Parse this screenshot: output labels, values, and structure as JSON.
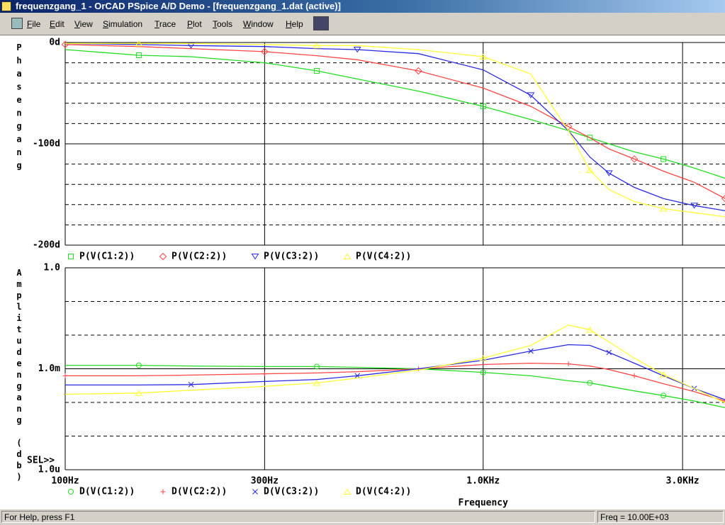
{
  "window": {
    "title": "frequenzgang_1 - OrCAD PSpice A/D Demo  - [frequenzgang_1.dat (active)]",
    "menu": [
      "File",
      "Edit",
      "View",
      "Simulation",
      "Trace",
      "Plot",
      "Tools",
      "Window",
      "Help"
    ],
    "status": {
      "help": "For Help, press F1",
      "freq": "Freq = 10.00E+03"
    },
    "sel_marker": "SEL>>"
  },
  "chart_data": [
    {
      "type": "line",
      "ylabel": "Phasengang",
      "xscale": "log",
      "grid": true,
      "xlim": [
        100,
        3790
      ],
      "xticks": [
        100,
        300,
        1000,
        3000
      ],
      "ylim": [
        -200,
        0
      ],
      "yticks": [
        {
          "value": -200,
          "label": "-200d"
        },
        {
          "value": -100,
          "label": "-100d"
        },
        {
          "value": 0,
          "label": "0d"
        }
      ],
      "x": [
        100,
        150,
        200,
        300,
        400,
        500,
        700,
        1000,
        1300,
        1600,
        1800,
        2000,
        2300,
        2700,
        3200,
        3790
      ],
      "series": [
        {
          "name": "P(V(C1:2))",
          "color": "#22dd22",
          "marker": "square",
          "values": [
            -7,
            -12.6,
            -14,
            -20,
            -28,
            -36,
            -48,
            -63,
            -76,
            -87,
            -94,
            -100,
            -108,
            -115,
            -124,
            -134
          ]
        },
        {
          "name": "P(V(C2:2))",
          "color": "#ff4444",
          "marker": "diamond",
          "values": [
            -2,
            -4,
            -6,
            -9,
            -13,
            -17,
            -28,
            -45,
            -63,
            -83,
            -94,
            -105,
            -115,
            -127,
            -138,
            -154
          ]
        },
        {
          "name": "P(V(C3:2))",
          "color": "#2a2ae0",
          "marker": "triangle-down",
          "values": [
            -1,
            -2,
            -3,
            -4,
            -6,
            -7,
            -11,
            -27,
            -52,
            -87,
            -113,
            -129,
            -143,
            -154,
            -161,
            -166
          ]
        },
        {
          "name": "P(V(C4:2))",
          "color": "#ffff33",
          "marker": "triangle-up",
          "values": [
            -1,
            -1,
            -1,
            -2,
            -3,
            -3,
            -7,
            -14,
            -31,
            -87,
            -126,
            -145,
            -157,
            -164,
            -168,
            -172
          ]
        }
      ]
    },
    {
      "type": "line",
      "ylabel": "Amplitudengang (db)",
      "xlabel": "Frequency",
      "xscale": "log",
      "yscale": "log",
      "grid": true,
      "xlim": [
        100,
        3790
      ],
      "xticks": [
        {
          "value": 100,
          "label": "100Hz"
        },
        {
          "value": 300,
          "label": "300Hz"
        },
        {
          "value": 1000,
          "label": "1.0KHz"
        },
        {
          "value": 3000,
          "label": "3.0KHz"
        }
      ],
      "ylim": [
        1e-06,
        1
      ],
      "yticks": [
        {
          "value": 1e-06,
          "label": "1.0u"
        },
        {
          "value": 0.001,
          "label": "1.0m"
        },
        {
          "value": 1,
          "label": "1.0"
        }
      ],
      "x": [
        100,
        150,
        200,
        300,
        400,
        500,
        700,
        1000,
        1300,
        1600,
        1800,
        2000,
        2300,
        2700,
        3200,
        3790
      ],
      "series": [
        {
          "name": "D(V(C1:2))",
          "color": "#22dd22",
          "marker": "circle",
          "values": [
            0.00127,
            0.00127,
            0.00121,
            0.00116,
            0.00116,
            0.0011,
            0.001,
            0.00078,
            0.00062,
            0.00044,
            0.00038,
            0.0003,
            0.00022,
            0.00016,
            0.00011,
            7e-05
          ]
        },
        {
          "name": "D(V(C2:2))",
          "color": "#ff4444",
          "marker": "plus",
          "values": [
            0.00062,
            0.00062,
            0.00065,
            0.00071,
            0.00075,
            0.00082,
            0.001,
            0.00134,
            0.00147,
            0.0014,
            0.00121,
            0.00095,
            0.00062,
            0.00036,
            0.00021,
            0.00011
          ]
        },
        {
          "name": "D(V(C3:2))",
          "color": "#2a2ae0",
          "marker": "x",
          "values": [
            0.00033,
            0.00033,
            0.00034,
            0.00042,
            0.00048,
            0.00062,
            0.001,
            0.00179,
            0.00336,
            0.0052,
            0.00495,
            0.00305,
            0.00147,
            0.00062,
            0.00026,
            0.00012
          ]
        },
        {
          "name": "D(V(C4:2))",
          "color": "#ffff33",
          "marker": "triangle-up",
          "values": [
            0.000175,
            0.00019,
            0.00023,
            0.0003,
            0.00038,
            0.00053,
            0.00091,
            0.00207,
            0.00495,
            0.02,
            0.0144,
            0.0063,
            0.00207,
            0.00068,
            0.00026,
            9.8e-05
          ]
        }
      ]
    }
  ]
}
